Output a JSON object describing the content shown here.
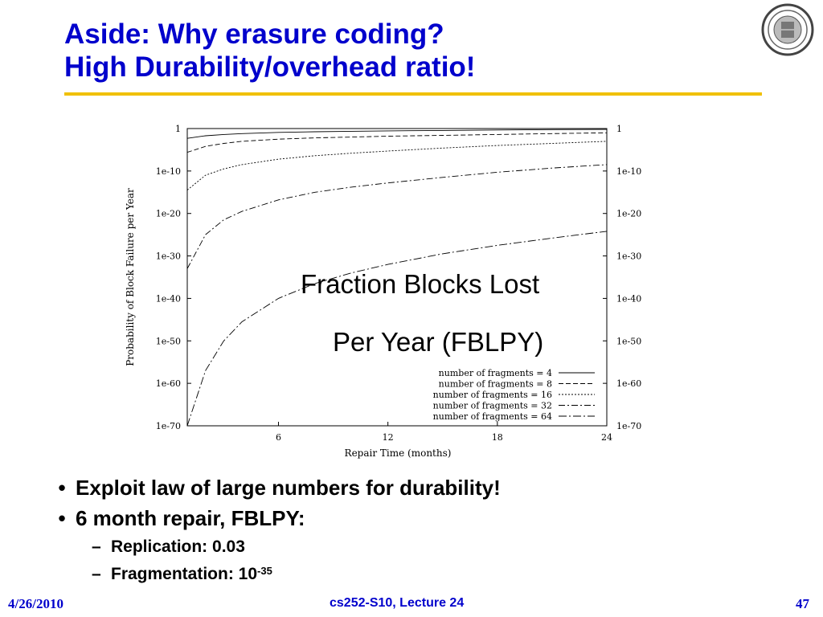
{
  "slide": {
    "title_line1": "Aside: Why erasure coding?",
    "title_line2": "High Durability/overhead ratio!",
    "overlay_line1": "Fraction Blocks Lost",
    "overlay_line2": "Per Year (FBLPY)"
  },
  "bullets": {
    "b1": "Exploit law of large numbers for durability!",
    "b2": "6 month repair, FBLPY:",
    "b2_sub1": "Replication: 0.03",
    "b2_sub2_prefix": "Fragmentation: 10",
    "b2_sub2_exp": "-35",
    "marker": "•",
    "sub_marker": "–"
  },
  "footer": {
    "date": "4/26/2010",
    "course": "cs252-S10, Lecture 24",
    "page": "47"
  },
  "colors": {
    "title": "#0000cc",
    "rule": "#f0c000"
  },
  "seal": {
    "icon": "university-seal-icon"
  },
  "chart_data": {
    "type": "line",
    "xlabel": "Repair Time (months)",
    "ylabel": "Probability of Block Failure per Year",
    "xlim": [
      1,
      24
    ],
    "ylim_log10": [
      -70,
      0
    ],
    "x_ticks": [
      6,
      12,
      18,
      24
    ],
    "x_tick_labels": [
      "6",
      "12",
      "18",
      "24"
    ],
    "y_ticks_log10": [
      0,
      -10,
      -20,
      -30,
      -40,
      -50,
      -60,
      -70
    ],
    "y_tick_labels": [
      "1",
      "1e-10",
      "1e-20",
      "1e-30",
      "1e-40",
      "1e-50",
      "1e-60",
      "1e-70"
    ],
    "legend_position": "bottom-right",
    "x": [
      1,
      2,
      3,
      4,
      6,
      8,
      10,
      12,
      15,
      18,
      21,
      24
    ],
    "series": [
      {
        "name": "number of fragments = 4",
        "dash": "",
        "log10_values": [
          -2.3,
          -1.7,
          -1.4,
          -1.2,
          -0.9,
          -0.75,
          -0.65,
          -0.55,
          -0.45,
          -0.35,
          -0.25,
          -0.2
        ]
      },
      {
        "name": "number of fragments = 8",
        "dash": "6,3",
        "log10_values": [
          -5.6,
          -4.2,
          -3.5,
          -3.0,
          -2.5,
          -2.2,
          -2.0,
          -1.8,
          -1.6,
          -1.4,
          -1.2,
          -1.0
        ]
      },
      {
        "name": "number of fragments = 16",
        "dash": "2,2",
        "log10_values": [
          -14.5,
          -11.0,
          -9.5,
          -8.5,
          -7.2,
          -6.4,
          -5.8,
          -5.3,
          -4.6,
          -4.0,
          -3.5,
          -3.0
        ]
      },
      {
        "name": "number of fragments = 32",
        "dash": "8,3,2,3",
        "log10_values": [
          -33.0,
          -25.0,
          -21.5,
          -19.5,
          -16.8,
          -15.0,
          -13.8,
          -12.8,
          -11.5,
          -10.3,
          -9.3,
          -8.5
        ]
      },
      {
        "name": "number of fragments = 64",
        "dash": "10,3,2,3",
        "log10_values": [
          -70.0,
          -57.0,
          -50.0,
          -45.5,
          -40.0,
          -36.5,
          -34.0,
          -32.0,
          -29.5,
          -27.5,
          -25.8,
          -24.2
        ]
      }
    ]
  }
}
